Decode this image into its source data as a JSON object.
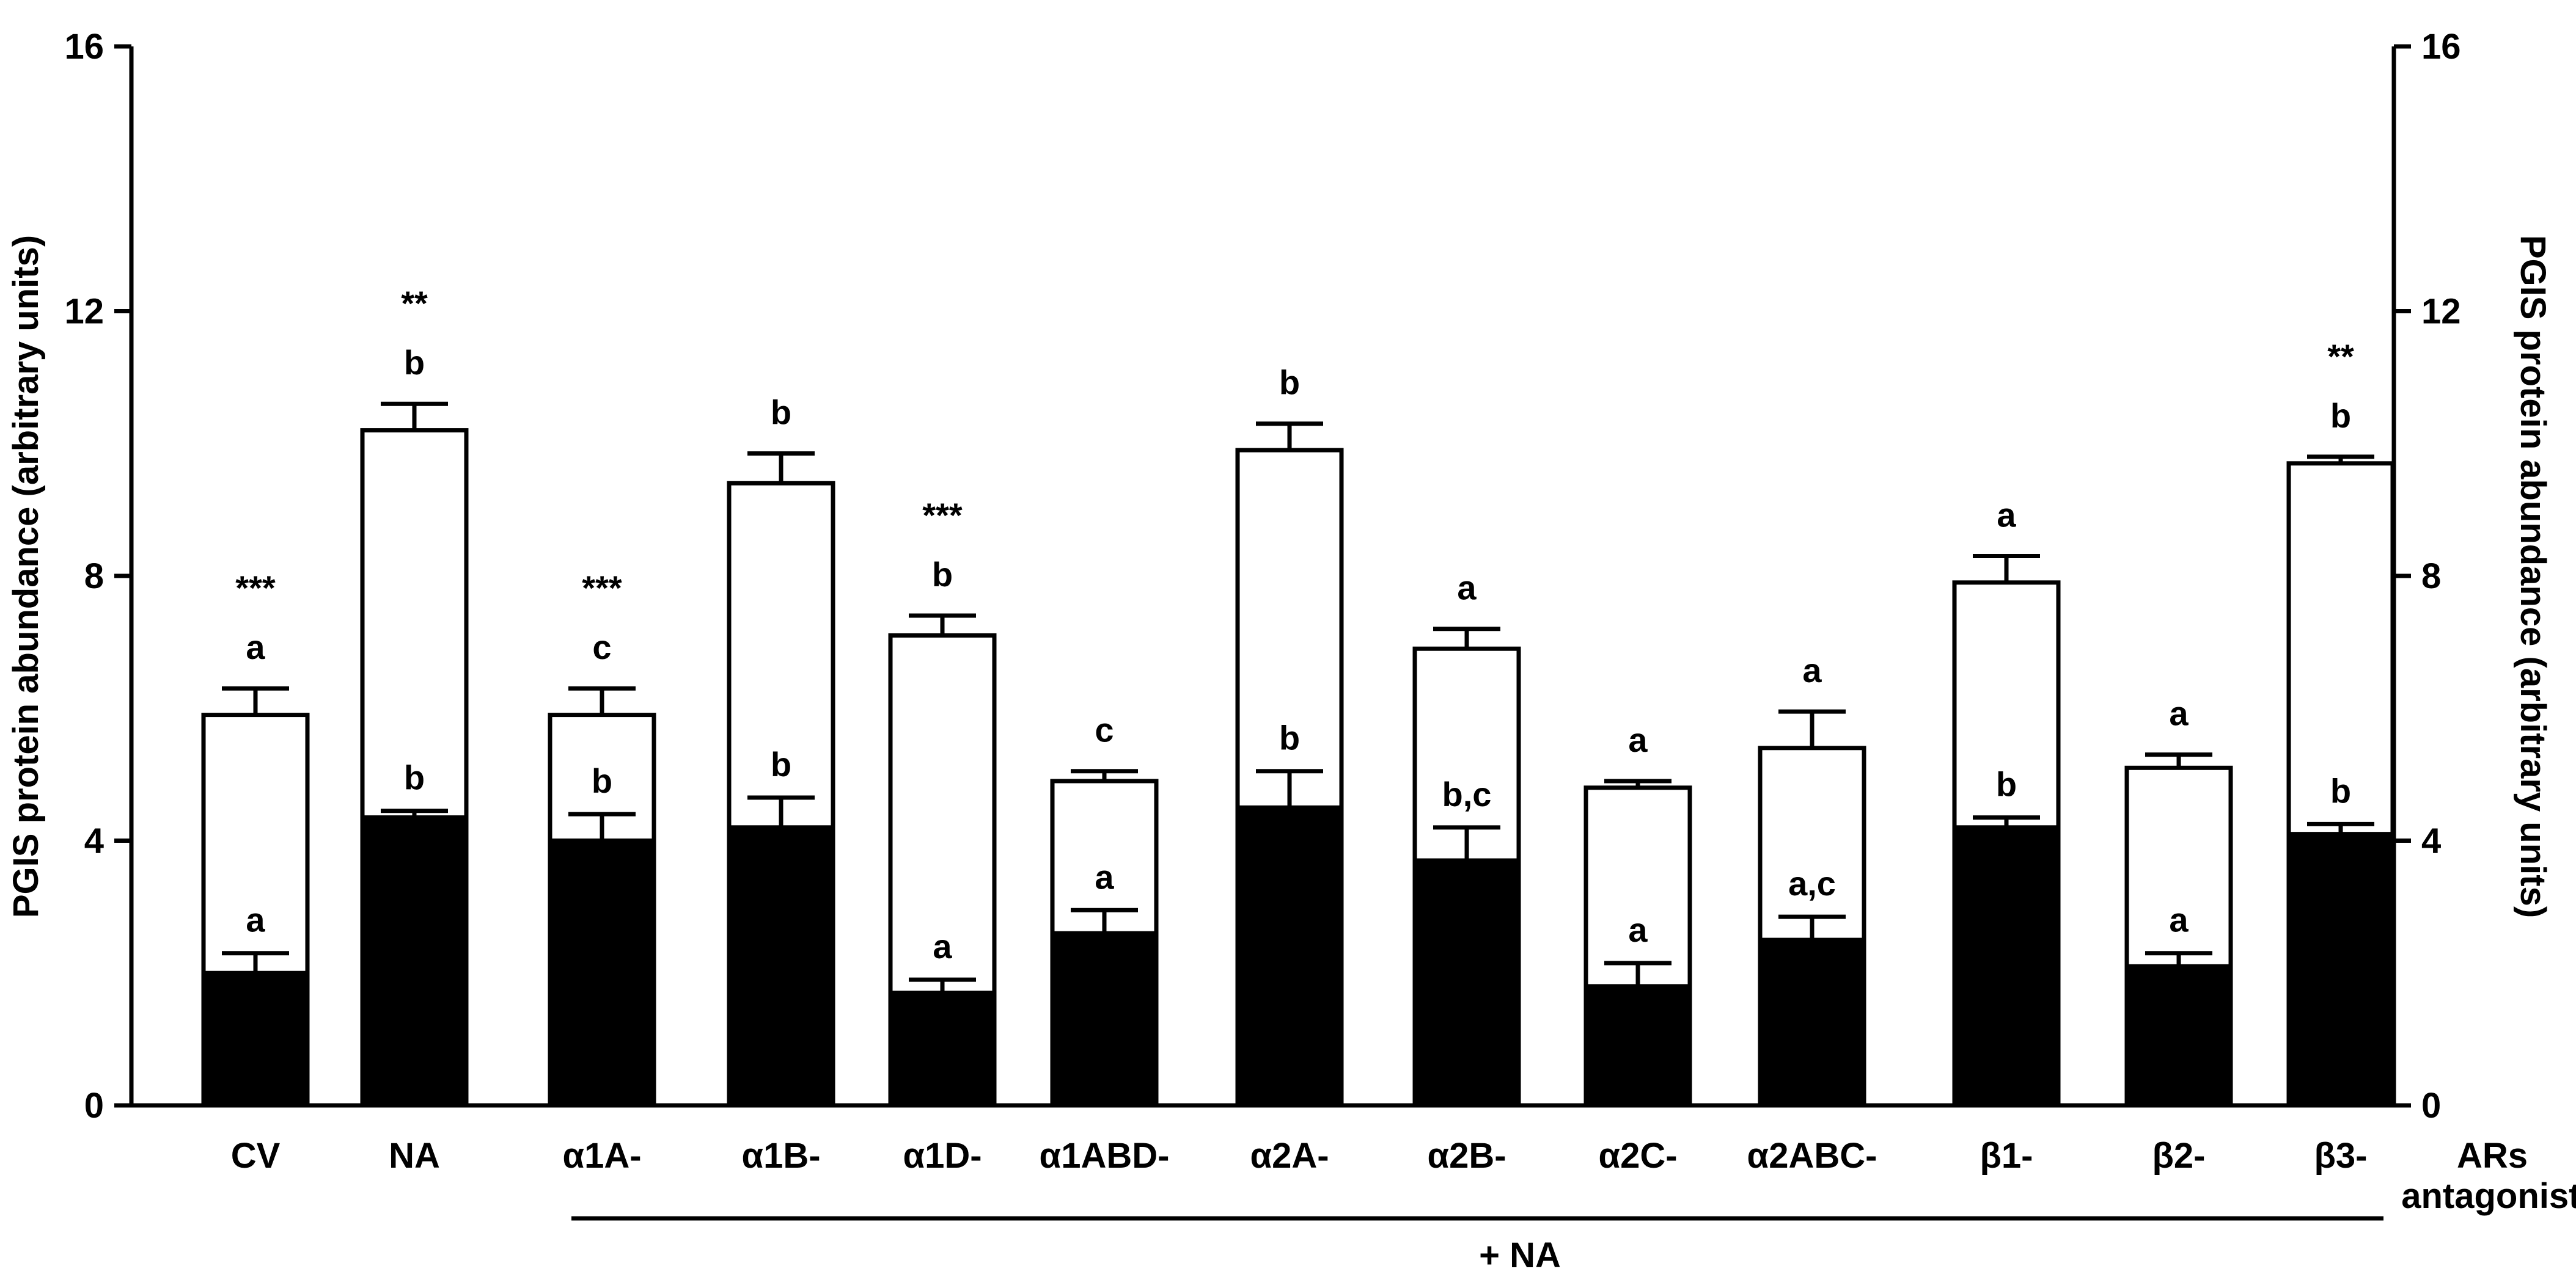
{
  "chart_data": {
    "type": "bar",
    "stacked_overlay": true,
    "ylabel_left": "PGIS protein abundance (arbitrary units)",
    "ylabel_right": "PGIS protein abundance (arbitrary units)",
    "ylim": [
      0,
      16
    ],
    "yticks": [
      "0",
      "4",
      "8",
      "12",
      "16"
    ],
    "categories": [
      "CV",
      "NA",
      "α1A-",
      "α1B-",
      "α1D-",
      "α1ABD-",
      "α2A-",
      "α2B-",
      "α2C-",
      "α2ABC-",
      "β1-",
      "β2-",
      "β3-"
    ],
    "category_suffix_label": [
      "ARs",
      "antagonists"
    ],
    "group_label": "+ NA",
    "series": [
      {
        "fill": "#ffffff",
        "values": [
          5.9,
          10.2,
          5.9,
          9.4,
          7.1,
          4.9,
          9.9,
          6.9,
          4.8,
          5.4,
          7.9,
          5.1,
          9.7
        ],
        "errors": [
          0.4,
          0.4,
          0.4,
          0.45,
          0.3,
          0.15,
          0.4,
          0.3,
          0.1,
          0.55,
          0.4,
          0.2,
          0.1
        ],
        "letters": [
          "a",
          "b",
          "c",
          "b",
          "b",
          "c",
          "b",
          "a",
          "a",
          "a",
          "a",
          "a",
          "b"
        ],
        "stars": [
          "***",
          "**",
          "***",
          "",
          "***",
          "",
          "",
          "",
          "",
          "",
          "",
          "",
          "**"
        ]
      },
      {
        "fill": "#000000",
        "values": [
          2.0,
          4.35,
          4.0,
          4.2,
          1.7,
          2.6,
          4.5,
          3.7,
          1.8,
          2.5,
          4.2,
          2.1,
          4.1
        ],
        "errors": [
          0.3,
          0.1,
          0.4,
          0.45,
          0.2,
          0.35,
          0.55,
          0.5,
          0.35,
          0.35,
          0.15,
          0.2,
          0.15
        ],
        "letters": [
          "a",
          "b",
          "b",
          "b",
          "a",
          "a",
          "b",
          "b,c",
          "a",
          "a,c",
          "b",
          "a",
          "b"
        ]
      }
    ]
  }
}
